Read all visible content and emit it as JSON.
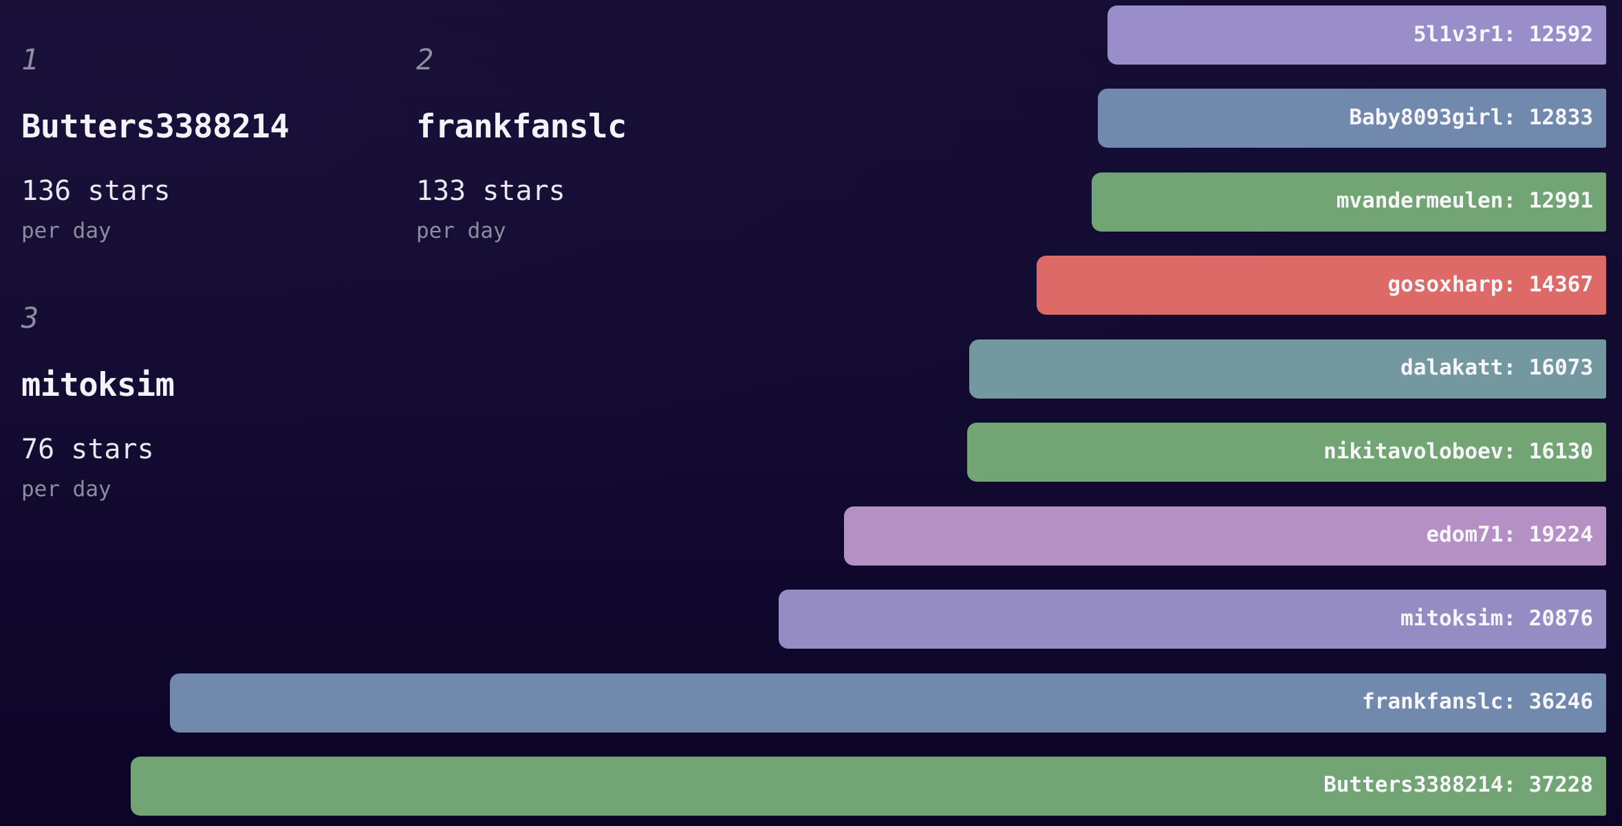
{
  "chart_data": {
    "type": "bar",
    "orientation": "horizontal",
    "title": "",
    "unit": "stars",
    "value_axis_max": 37228,
    "bars": [
      {
        "label": "5l1v3r1",
        "value": 12592,
        "color": "#998EC9"
      },
      {
        "label": "Baby8093girl",
        "value": 12833,
        "color": "#7189AD"
      },
      {
        "label": "mvandermeulen",
        "value": 12991,
        "color": "#72A474"
      },
      {
        "label": "gosoxharp",
        "value": 14367,
        "color": "#DD6A66"
      },
      {
        "label": "dalakatt",
        "value": 16073,
        "color": "#74989F"
      },
      {
        "label": "nikitavoloboev",
        "value": 16130,
        "color": "#72A474"
      },
      {
        "label": "edom71",
        "value": 19224,
        "color": "#B490C4"
      },
      {
        "label": "mitoksim",
        "value": 20876,
        "color": "#968CC4"
      },
      {
        "label": "frankfanslc",
        "value": 36246,
        "color": "#7189AD"
      },
      {
        "label": "Butters3388214",
        "value": 37228,
        "color": "#72A474"
      }
    ],
    "label_separator": ": "
  },
  "leaderboard": [
    {
      "rank": "1",
      "name": "Butters3388214",
      "rate": "136 stars",
      "per": "per day"
    },
    {
      "rank": "2",
      "name": "frankfanslc",
      "rate": "133 stars",
      "per": "per day"
    },
    {
      "rank": "3",
      "name": "mitoksim",
      "rate": "76 stars",
      "per": "per day"
    }
  ],
  "colors": {
    "background_top": "#150D33",
    "background_bottom": "#0D0527",
    "bar_label_text": "#F7F6FA",
    "rank_number_text": "#908DA0",
    "name_text": "#F5F3F8",
    "rate_text": "#E9E7F0",
    "per_day_text": "#8F8C9E"
  }
}
